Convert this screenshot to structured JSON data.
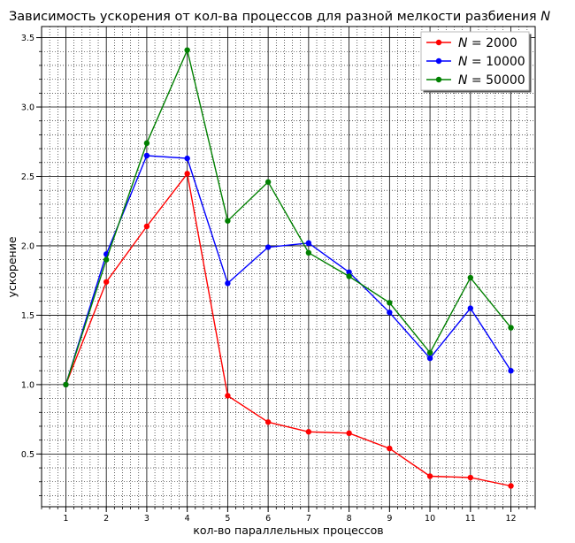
{
  "chart_data": {
    "type": "line",
    "title": "Зависимость ускорения от кол-ва процессов для разной мелкости разбиения N",
    "title_parts": {
      "text": "Зависимость ускорения от кол-ва процессов для разной мелкости разбиения ",
      "var": "N"
    },
    "xlabel": "кол-во параллельных процессов",
    "ylabel": "ускорение",
    "x": [
      1,
      2,
      3,
      4,
      5,
      6,
      7,
      8,
      9,
      10,
      11,
      12
    ],
    "x_ticks": [
      "1",
      "2",
      "3",
      "4",
      "5",
      "6",
      "7",
      "8",
      "9",
      "10",
      "11",
      "12"
    ],
    "y_ticks": [
      "0.5",
      "1.0",
      "1.5",
      "2.0",
      "2.5",
      "3.0",
      "3.5"
    ],
    "xlim": [
      0.4,
      12.6
    ],
    "ylim": [
      0.12,
      3.58
    ],
    "grid": true,
    "legend_position": "top-right",
    "series": [
      {
        "name": "N = 2000",
        "name_parts": {
          "var": "N",
          "eq": " = ",
          "num": "2000"
        },
        "color": "#ff0000",
        "values": [
          1.0,
          1.74,
          2.14,
          2.52,
          0.92,
          0.73,
          0.66,
          0.65,
          0.54,
          0.34,
          0.33,
          0.27
        ]
      },
      {
        "name": "N = 10000",
        "name_parts": {
          "var": "N",
          "eq": " = ",
          "num": "10000"
        },
        "color": "#0000ff",
        "values": [
          1.0,
          1.94,
          2.65,
          2.63,
          1.73,
          1.99,
          2.02,
          1.81,
          1.52,
          1.19,
          1.55,
          1.1
        ]
      },
      {
        "name": "N = 50000",
        "name_parts": {
          "var": "N",
          "eq": " = ",
          "num": "50000"
        },
        "color": "#008000",
        "values": [
          1.0,
          1.9,
          2.74,
          3.41,
          2.18,
          2.46,
          1.95,
          1.78,
          1.59,
          1.23,
          1.77,
          1.41
        ]
      }
    ]
  }
}
